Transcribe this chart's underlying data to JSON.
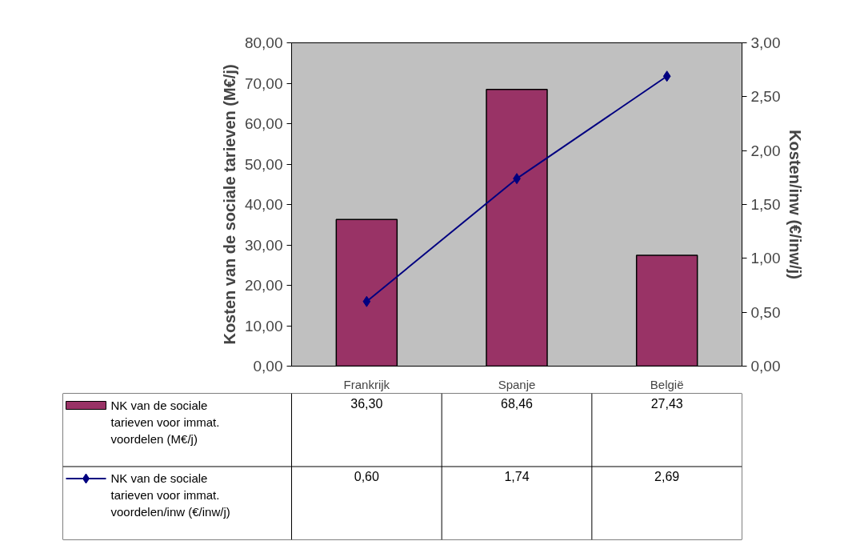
{
  "chart_data": {
    "type": "bar",
    "legend": "bottom",
    "categories": [
      "Frankrijk",
      "Spanje",
      "België"
    ],
    "ylabel": "Kosten van de sociale tarieven (M€/j)",
    "y2label": "Kosten/inw (€/inw/j)",
    "ylim": [
      0,
      80
    ],
    "yticks": [
      {
        "value": 0,
        "label": "0,00"
      },
      {
        "value": 10,
        "label": "10,00"
      },
      {
        "value": 20,
        "label": "20,00"
      },
      {
        "value": 30,
        "label": "30,00"
      },
      {
        "value": 40,
        "label": "40,00"
      },
      {
        "value": 50,
        "label": "50,00"
      },
      {
        "value": 60,
        "label": "60,00"
      },
      {
        "value": 70,
        "label": "70,00"
      },
      {
        "value": 80,
        "label": "80,00"
      }
    ],
    "y2lim": [
      0,
      3
    ],
    "y2ticks": [
      {
        "value": 0,
        "label": "0,00"
      },
      {
        "value": 0.5,
        "label": "0,50"
      },
      {
        "value": 1,
        "label": "1,00"
      },
      {
        "value": 1.5,
        "label": "1,50"
      },
      {
        "value": 2,
        "label": "2,00"
      },
      {
        "value": 2.5,
        "label": "2,50"
      },
      {
        "value": 3,
        "label": "3,00"
      }
    ],
    "series": [
      {
        "name": "NK van de sociale tarieven voor immat. voordelen (M€/j)",
        "color": "#993366",
        "values": [
          36.3,
          68.46,
          27.43
        ],
        "value_labels": [
          "36,30",
          "68,46",
          "27,43"
        ]
      },
      {
        "name": "NK van de sociale tarieven voor immat. voordelen/inw (€/inw/j)",
        "type": "line",
        "axis": "y2",
        "marker": "diamond",
        "color": "#000080",
        "values": [
          0.6,
          1.74,
          2.69
        ],
        "value_labels": [
          "0,60",
          "1,74",
          "2,69"
        ]
      }
    ]
  }
}
